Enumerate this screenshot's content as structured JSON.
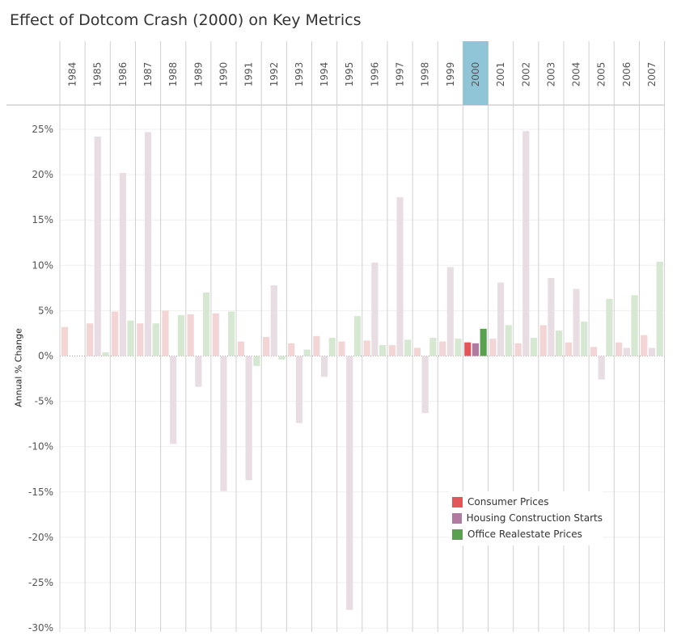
{
  "title": "Effect of Dotcom Crash (2000) on Key Metrics",
  "chart_data": {
    "type": "bar",
    "title": "Effect of Dotcom Crash (2000) on Key Metrics",
    "ylabel": "Annual % Change",
    "xlabel": "",
    "highlight_category": "2000",
    "highlight_color": "#8fc5d6",
    "ylim": [
      -0.3,
      0.25
    ],
    "yticks": [
      0.25,
      0.2,
      0.15,
      0.1,
      0.05,
      0,
      -0.05,
      -0.1,
      -0.15,
      -0.2,
      -0.25,
      -0.3
    ],
    "ytick_labels": [
      "25%",
      "20%",
      "15%",
      "10%",
      "5%",
      "0%",
      "-5%",
      "-10%",
      "-15%",
      "-20%",
      "-25%",
      "-30%"
    ],
    "categories": [
      "1984",
      "1985",
      "1986",
      "1987",
      "1988",
      "1989",
      "1990",
      "1991",
      "1992",
      "1993",
      "1994",
      "1995",
      "1996",
      "1997",
      "1998",
      "1999",
      "2000",
      "2001",
      "2002",
      "2003",
      "2004",
      "2005",
      "2006",
      "2007"
    ],
    "legend_position": "bottom-right",
    "series": [
      {
        "name": "Consumer Prices",
        "color": "#e15759",
        "faded_color": "#f3d5d5",
        "values": [
          0.032,
          0.036,
          0.049,
          0.036,
          0.05,
          0.046,
          0.047,
          0.016,
          0.021,
          0.014,
          0.022,
          0.016,
          0.017,
          0.012,
          0.009,
          0.016,
          0.015,
          0.019,
          0.014,
          0.034,
          0.015,
          0.01,
          0.015,
          0.023
        ]
      },
      {
        "name": "Housing Construction Starts",
        "color": "#b07aa1",
        "faded_color": "#e9dde4",
        "values": [
          null,
          0.242,
          0.202,
          0.247,
          -0.097,
          -0.034,
          -0.149,
          -0.137,
          0.078,
          -0.074,
          -0.023,
          -0.28,
          0.103,
          0.175,
          -0.063,
          0.098,
          0.014,
          0.081,
          0.248,
          0.086,
          0.074,
          -0.026,
          0.009,
          0.009
        ]
      },
      {
        "name": "Office Realestate Prices",
        "color": "#59a14f",
        "faded_color": "#d6e7d2",
        "values": [
          null,
          0.004,
          0.039,
          0.036,
          0.045,
          0.07,
          0.049,
          -0.011,
          -0.004,
          0.007,
          0.02,
          0.044,
          0.012,
          0.018,
          0.02,
          0.019,
          0.03,
          0.034,
          0.02,
          0.028,
          0.038,
          0.063,
          0.067,
          0.104
        ]
      }
    ]
  }
}
